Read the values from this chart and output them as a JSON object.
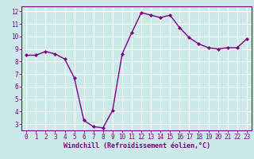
{
  "x": [
    0,
    1,
    2,
    3,
    4,
    5,
    6,
    7,
    8,
    9,
    10,
    11,
    12,
    13,
    14,
    15,
    16,
    17,
    18,
    19,
    20,
    21,
    22,
    23
  ],
  "y": [
    8.5,
    8.5,
    8.8,
    8.6,
    8.2,
    6.7,
    3.3,
    2.8,
    2.7,
    4.1,
    8.6,
    10.3,
    11.9,
    11.7,
    11.5,
    11.7,
    10.7,
    9.9,
    9.4,
    9.1,
    9.0,
    9.1,
    9.1,
    9.8
  ],
  "line_color": "#800080",
  "marker": "D",
  "marker_size": 2.0,
  "bg_color": "#cce8e8",
  "grid_color": "#ffffff",
  "xlabel": "Windchill (Refroidissement éolien,°C)",
  "xlim": [
    -0.5,
    23.5
  ],
  "ylim": [
    2.5,
    12.4
  ],
  "yticks": [
    3,
    4,
    5,
    6,
    7,
    8,
    9,
    10,
    11,
    12
  ],
  "xticks": [
    0,
    1,
    2,
    3,
    4,
    5,
    6,
    7,
    8,
    9,
    10,
    11,
    12,
    13,
    14,
    15,
    16,
    17,
    18,
    19,
    20,
    21,
    22,
    23
  ],
  "axis_color": "#800080",
  "tick_color": "#800080",
  "label_color": "#800080",
  "tick_fontsize": 5.5,
  "label_fontsize": 6.0,
  "linewidth": 1.0
}
